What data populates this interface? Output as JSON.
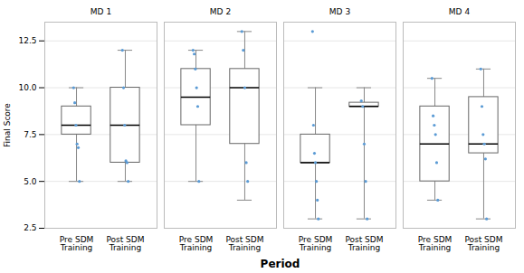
{
  "chart_data": {
    "type": "box",
    "xlabel": "Period",
    "ylabel": "Final Score",
    "facets": [
      "MD 1",
      "MD 2",
      "MD 3",
      "MD 4"
    ],
    "categories": [
      "Pre SDM\nTraining",
      "Post SDM\nTraining"
    ],
    "ylim": [
      2.5,
      13.5
    ],
    "yticks": [
      2.5,
      {
        "value": 5.0,
        "label": "5.0"
      },
      7.5,
      {
        "value": 10.0,
        "label": "10.0"
      },
      12.5
    ],
    "grid": true,
    "color": "#5b9bd5",
    "boxes": [
      {
        "facet": "MD 1",
        "category": "Pre SDM\nTraining",
        "q1": 7.5,
        "median": 8.0,
        "q3": 9.0,
        "whislo": 5.0,
        "whishi": 10.0,
        "points": [
          10.0,
          9.2,
          8.0,
          7.0,
          6.8,
          5.0
        ]
      },
      {
        "facet": "MD 1",
        "category": "Post SDM\nTraining",
        "q1": 6.0,
        "median": 8.0,
        "q3": 10.0,
        "whislo": 5.0,
        "whishi": 12.0,
        "points": [
          12.0,
          10.0,
          8.0,
          6.1,
          6.0,
          5.0
        ]
      },
      {
        "facet": "MD 2",
        "category": "Pre SDM\nTraining",
        "q1": 8.0,
        "median": 9.5,
        "q3": 11.0,
        "whislo": 5.0,
        "whishi": 12.0,
        "points": [
          12.0,
          11.8,
          11.0,
          10.0,
          9.0,
          5.0
        ]
      },
      {
        "facet": "MD 2",
        "category": "Post SDM\nTraining",
        "q1": 7.0,
        "median": 10.0,
        "q3": 11.0,
        "whislo": 4.0,
        "whishi": 13.0,
        "points": [
          13.0,
          12.0,
          10.0,
          6.0,
          5.0
        ]
      },
      {
        "facet": "MD 3",
        "category": "Pre SDM\nTraining",
        "q1": 6.0,
        "median": 6.0,
        "q3": 7.5,
        "whislo": 3.0,
        "whishi": 10.0,
        "points": [
          13.0,
          8.0,
          6.5,
          6.0,
          5.0,
          4.0,
          3.0
        ]
      },
      {
        "facet": "MD 3",
        "category": "Post SDM\nTraining",
        "q1": 9.0,
        "median": 9.0,
        "q3": 9.2,
        "whislo": 3.0,
        "whishi": 10.0,
        "points": [
          9.3,
          9.0,
          7.0,
          5.0,
          3.0
        ]
      },
      {
        "facet": "MD 4",
        "category": "Pre SDM\nTraining",
        "q1": 5.0,
        "median": 7.0,
        "q3": 9.0,
        "whislo": 4.0,
        "whishi": 10.5,
        "points": [
          10.5,
          8.5,
          8.0,
          7.5,
          6.0,
          4.0
        ]
      },
      {
        "facet": "MD 4",
        "category": "Post SDM\nTraining",
        "q1": 6.5,
        "median": 7.0,
        "q3": 9.5,
        "whislo": 3.0,
        "whishi": 11.0,
        "points": [
          11.0,
          9.0,
          7.5,
          7.0,
          6.2,
          3.0
        ]
      }
    ]
  }
}
